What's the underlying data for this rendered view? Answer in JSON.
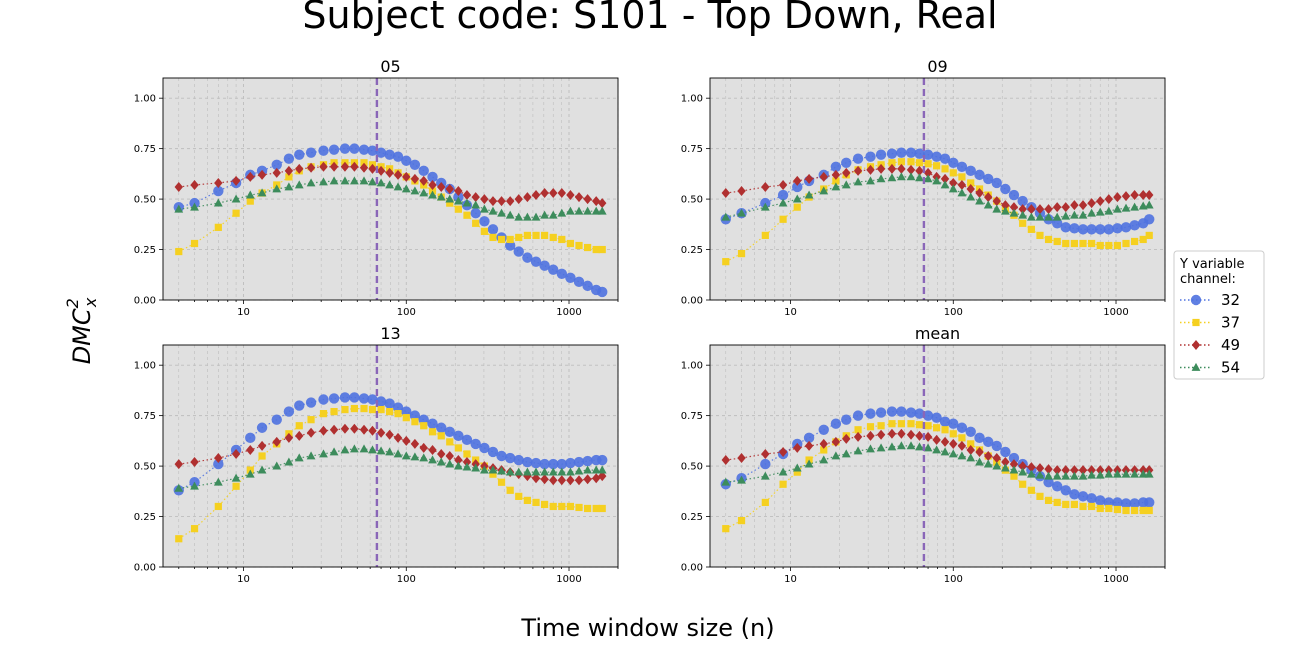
{
  "figure": {
    "title": "Subject code: S101 - Top Down, Real",
    "xlabel": "Time window size (n)",
    "ylabel": "DMC",
    "ylabel_sup": "2",
    "ylabel_sub": "x"
  },
  "legend": {
    "title_line1": "Y variable",
    "title_line2": "channel:",
    "placement": "right"
  },
  "chart_data": {
    "type": "scatter",
    "x_scale": "log",
    "xlim": [
      3.2,
      2000
    ],
    "ylim": [
      0,
      1.1
    ],
    "x_ticks": [
      10,
      100,
      1000
    ],
    "x_tick_labels": [
      "10",
      "100",
      "1000"
    ],
    "y_ticks": [
      0,
      0.25,
      0.5,
      0.75,
      1.0
    ],
    "y_tick_labels": [
      "0.00",
      "0.25",
      "0.50",
      "0.75",
      "1.00"
    ],
    "grid": true,
    "vline_x": 66,
    "colors": {
      "32": "#4f72e0",
      "37": "#f5d020",
      "49": "#b03030",
      "54": "#3d8c5c",
      "vline": "#8a66b8",
      "axes_bg": "#e0e0e0"
    },
    "x": [
      4,
      5,
      7,
      9,
      11,
      13,
      16,
      19,
      22,
      26,
      31,
      36,
      42,
      48,
      55,
      62,
      70,
      79,
      89,
      100,
      113,
      128,
      145,
      164,
      185,
      209,
      236,
      267,
      302,
      341,
      385,
      435,
      491,
      555,
      627,
      708,
      800,
      903,
      1020,
      1152,
      1301,
      1469,
      1600
    ],
    "series_names": [
      "32",
      "37",
      "49",
      "54"
    ],
    "panels": [
      {
        "title": "05",
        "series": [
          {
            "name": "32",
            "marker": "circle",
            "values": [
              0.46,
              0.48,
              0.54,
              0.58,
              0.62,
              0.64,
              0.67,
              0.7,
              0.72,
              0.73,
              0.74,
              0.745,
              0.75,
              0.75,
              0.745,
              0.74,
              0.73,
              0.72,
              0.71,
              0.69,
              0.67,
              0.64,
              0.61,
              0.58,
              0.55,
              0.51,
              0.47,
              0.43,
              0.39,
              0.35,
              0.31,
              0.27,
              0.24,
              0.21,
              0.19,
              0.17,
              0.15,
              0.13,
              0.11,
              0.09,
              0.07,
              0.05,
              0.04
            ]
          },
          {
            "name": "37",
            "marker": "square",
            "values": [
              0.24,
              0.28,
              0.36,
              0.43,
              0.49,
              0.53,
              0.57,
              0.61,
              0.64,
              0.66,
              0.67,
              0.68,
              0.68,
              0.68,
              0.68,
              0.67,
              0.66,
              0.65,
              0.63,
              0.61,
              0.59,
              0.57,
              0.54,
              0.51,
              0.48,
              0.45,
              0.42,
              0.38,
              0.34,
              0.31,
              0.3,
              0.3,
              0.31,
              0.32,
              0.32,
              0.32,
              0.31,
              0.3,
              0.28,
              0.27,
              0.26,
              0.25,
              0.25
            ]
          },
          {
            "name": "49",
            "marker": "diamond",
            "values": [
              0.56,
              0.57,
              0.58,
              0.59,
              0.61,
              0.62,
              0.63,
              0.64,
              0.65,
              0.655,
              0.66,
              0.66,
              0.66,
              0.66,
              0.655,
              0.65,
              0.64,
              0.63,
              0.62,
              0.61,
              0.6,
              0.59,
              0.57,
              0.56,
              0.55,
              0.54,
              0.52,
              0.51,
              0.5,
              0.49,
              0.49,
              0.49,
              0.5,
              0.51,
              0.52,
              0.53,
              0.53,
              0.53,
              0.52,
              0.51,
              0.5,
              0.49,
              0.48
            ]
          },
          {
            "name": "54",
            "marker": "triangle",
            "values": [
              0.45,
              0.46,
              0.48,
              0.5,
              0.52,
              0.53,
              0.55,
              0.56,
              0.57,
              0.58,
              0.585,
              0.59,
              0.59,
              0.59,
              0.59,
              0.585,
              0.58,
              0.57,
              0.56,
              0.55,
              0.54,
              0.53,
              0.52,
              0.51,
              0.5,
              0.49,
              0.48,
              0.47,
              0.45,
              0.44,
              0.43,
              0.42,
              0.41,
              0.41,
              0.41,
              0.42,
              0.42,
              0.43,
              0.44,
              0.44,
              0.44,
              0.44,
              0.44
            ]
          }
        ]
      },
      {
        "title": "09",
        "series": [
          {
            "name": "32",
            "marker": "circle",
            "values": [
              0.4,
              0.43,
              0.48,
              0.52,
              0.56,
              0.59,
              0.62,
              0.66,
              0.68,
              0.7,
              0.71,
              0.72,
              0.725,
              0.73,
              0.73,
              0.725,
              0.72,
              0.71,
              0.7,
              0.68,
              0.66,
              0.64,
              0.62,
              0.6,
              0.58,
              0.55,
              0.52,
              0.49,
              0.46,
              0.43,
              0.4,
              0.38,
              0.36,
              0.355,
              0.35,
              0.35,
              0.35,
              0.35,
              0.355,
              0.36,
              0.37,
              0.38,
              0.4
            ]
          },
          {
            "name": "37",
            "marker": "square",
            "values": [
              0.19,
              0.23,
              0.32,
              0.4,
              0.46,
              0.51,
              0.55,
              0.59,
              0.62,
              0.645,
              0.66,
              0.67,
              0.68,
              0.685,
              0.685,
              0.68,
              0.675,
              0.665,
              0.65,
              0.63,
              0.61,
              0.58,
              0.55,
              0.52,
              0.49,
              0.45,
              0.42,
              0.38,
              0.35,
              0.32,
              0.3,
              0.29,
              0.28,
              0.28,
              0.28,
              0.28,
              0.27,
              0.27,
              0.27,
              0.28,
              0.29,
              0.3,
              0.32
            ]
          },
          {
            "name": "49",
            "marker": "diamond",
            "values": [
              0.53,
              0.54,
              0.56,
              0.57,
              0.59,
              0.6,
              0.61,
              0.62,
              0.63,
              0.64,
              0.645,
              0.65,
              0.65,
              0.65,
              0.645,
              0.64,
              0.63,
              0.61,
              0.6,
              0.58,
              0.57,
              0.55,
              0.53,
              0.51,
              0.49,
              0.47,
              0.46,
              0.45,
              0.45,
              0.45,
              0.45,
              0.46,
              0.46,
              0.47,
              0.47,
              0.48,
              0.49,
              0.5,
              0.51,
              0.515,
              0.52,
              0.52,
              0.52
            ]
          },
          {
            "name": "54",
            "marker": "triangle",
            "values": [
              0.41,
              0.43,
              0.46,
              0.48,
              0.5,
              0.52,
              0.54,
              0.56,
              0.57,
              0.585,
              0.59,
              0.6,
              0.605,
              0.61,
              0.61,
              0.605,
              0.6,
              0.59,
              0.57,
              0.55,
              0.53,
              0.51,
              0.49,
              0.47,
              0.45,
              0.44,
              0.43,
              0.42,
              0.41,
              0.41,
              0.41,
              0.41,
              0.415,
              0.42,
              0.42,
              0.43,
              0.435,
              0.44,
              0.45,
              0.455,
              0.46,
              0.465,
              0.47
            ]
          }
        ]
      },
      {
        "title": "13",
        "series": [
          {
            "name": "32",
            "marker": "circle",
            "values": [
              0.38,
              0.42,
              0.51,
              0.58,
              0.64,
              0.69,
              0.73,
              0.77,
              0.8,
              0.815,
              0.83,
              0.835,
              0.84,
              0.84,
              0.835,
              0.83,
              0.82,
              0.81,
              0.79,
              0.77,
              0.75,
              0.73,
              0.71,
              0.69,
              0.67,
              0.65,
              0.63,
              0.61,
              0.59,
              0.57,
              0.55,
              0.54,
              0.53,
              0.52,
              0.515,
              0.51,
              0.51,
              0.51,
              0.515,
              0.52,
              0.525,
              0.53,
              0.53
            ]
          },
          {
            "name": "37",
            "marker": "square",
            "values": [
              0.14,
              0.19,
              0.3,
              0.4,
              0.48,
              0.55,
              0.61,
              0.66,
              0.7,
              0.73,
              0.76,
              0.77,
              0.78,
              0.785,
              0.785,
              0.78,
              0.78,
              0.77,
              0.76,
              0.74,
              0.72,
              0.7,
              0.67,
              0.65,
              0.62,
              0.59,
              0.56,
              0.53,
              0.5,
              0.46,
              0.42,
              0.38,
              0.35,
              0.33,
              0.32,
              0.31,
              0.3,
              0.3,
              0.3,
              0.295,
              0.29,
              0.29,
              0.29
            ]
          },
          {
            "name": "49",
            "marker": "diamond",
            "values": [
              0.51,
              0.52,
              0.54,
              0.56,
              0.58,
              0.6,
              0.62,
              0.64,
              0.65,
              0.665,
              0.675,
              0.68,
              0.685,
              0.685,
              0.68,
              0.675,
              0.665,
              0.655,
              0.64,
              0.625,
              0.61,
              0.59,
              0.58,
              0.56,
              0.55,
              0.53,
              0.52,
              0.51,
              0.5,
              0.49,
              0.48,
              0.47,
              0.46,
              0.45,
              0.44,
              0.435,
              0.43,
              0.43,
              0.43,
              0.43,
              0.435,
              0.44,
              0.45
            ]
          },
          {
            "name": "54",
            "marker": "triangle",
            "values": [
              0.39,
              0.4,
              0.42,
              0.44,
              0.46,
              0.48,
              0.5,
              0.52,
              0.54,
              0.55,
              0.56,
              0.57,
              0.58,
              0.585,
              0.585,
              0.58,
              0.575,
              0.57,
              0.56,
              0.55,
              0.545,
              0.54,
              0.53,
              0.52,
              0.51,
              0.5,
              0.495,
              0.49,
              0.48,
              0.48,
              0.475,
              0.47,
              0.47,
              0.47,
              0.47,
              0.47,
              0.47,
              0.47,
              0.47,
              0.475,
              0.48,
              0.48,
              0.48
            ]
          }
        ]
      },
      {
        "title": "mean",
        "series": [
          {
            "name": "32",
            "marker": "circle",
            "values": [
              0.41,
              0.44,
              0.51,
              0.56,
              0.61,
              0.64,
              0.68,
              0.71,
              0.73,
              0.75,
              0.76,
              0.765,
              0.77,
              0.77,
              0.765,
              0.76,
              0.75,
              0.74,
              0.72,
              0.71,
              0.69,
              0.67,
              0.64,
              0.62,
              0.6,
              0.57,
              0.54,
              0.51,
              0.48,
              0.45,
              0.42,
              0.4,
              0.38,
              0.36,
              0.35,
              0.34,
              0.33,
              0.32,
              0.32,
              0.315,
              0.315,
              0.32,
              0.32
            ]
          },
          {
            "name": "37",
            "marker": "square",
            "values": [
              0.19,
              0.23,
              0.32,
              0.41,
              0.47,
              0.53,
              0.58,
              0.62,
              0.65,
              0.68,
              0.695,
              0.7,
              0.71,
              0.71,
              0.71,
              0.705,
              0.7,
              0.69,
              0.68,
              0.66,
              0.64,
              0.61,
              0.58,
              0.55,
              0.52,
              0.48,
              0.45,
              0.41,
              0.38,
              0.35,
              0.33,
              0.32,
              0.31,
              0.31,
              0.3,
              0.3,
              0.29,
              0.29,
              0.285,
              0.28,
              0.28,
              0.28,
              0.28
            ]
          },
          {
            "name": "49",
            "marker": "diamond",
            "values": [
              0.53,
              0.54,
              0.56,
              0.57,
              0.59,
              0.6,
              0.61,
              0.62,
              0.635,
              0.645,
              0.65,
              0.655,
              0.66,
              0.66,
              0.655,
              0.65,
              0.645,
              0.63,
              0.62,
              0.61,
              0.6,
              0.58,
              0.57,
              0.55,
              0.54,
              0.52,
              0.51,
              0.5,
              0.495,
              0.49,
              0.485,
              0.48,
              0.48,
              0.48,
              0.48,
              0.48,
              0.48,
              0.48,
              0.48,
              0.48,
              0.48,
              0.48,
              0.48
            ]
          },
          {
            "name": "54",
            "marker": "triangle",
            "values": [
              0.42,
              0.43,
              0.45,
              0.47,
              0.49,
              0.51,
              0.53,
              0.55,
              0.56,
              0.575,
              0.585,
              0.59,
              0.595,
              0.6,
              0.6,
              0.595,
              0.59,
              0.58,
              0.57,
              0.56,
              0.55,
              0.54,
              0.52,
              0.51,
              0.5,
              0.49,
              0.48,
              0.47,
              0.46,
              0.455,
              0.45,
              0.45,
              0.45,
              0.45,
              0.45,
              0.455,
              0.455,
              0.46,
              0.46,
              0.46,
              0.46,
              0.46,
              0.46
            ]
          }
        ]
      }
    ]
  }
}
